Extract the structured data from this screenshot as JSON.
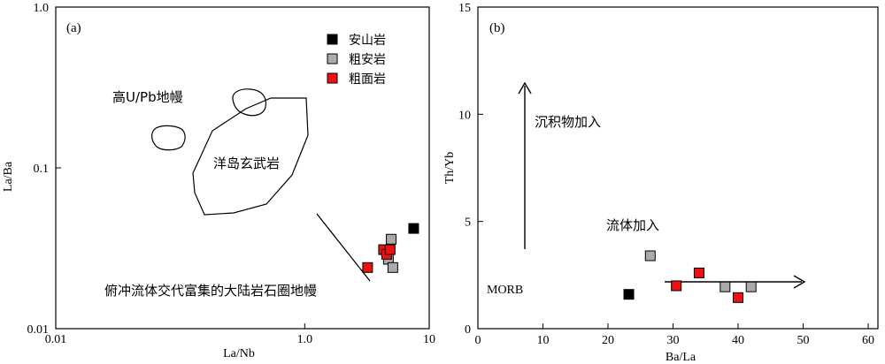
{
  "chart_data": [
    {
      "type": "scatter",
      "panel_label": "(a)",
      "xlabel": "La/Nb",
      "ylabel": "La/Ba",
      "x_scale": "log",
      "y_scale": "log",
      "xlim": [
        0.01,
        10
      ],
      "ylim": [
        0.01,
        1.0
      ],
      "x_ticks": [
        {
          "value": 0.01,
          "label": "0.01"
        },
        {
          "value": 1.0,
          "label": "1.0"
        },
        {
          "value": 10,
          "label": "10"
        }
      ],
      "y_ticks": [
        {
          "value": 0.01,
          "label": "0.01"
        },
        {
          "value": 0.1,
          "label": "0.1"
        },
        {
          "value": 1.0,
          "label": "1.0"
        }
      ],
      "legend": {
        "placement": "top-right",
        "entries": [
          {
            "name": "安山岩",
            "color": "#000000"
          },
          {
            "name": "粗安岩",
            "color": "#aaaaaa"
          },
          {
            "name": "粗面岩",
            "color": "#ee1111"
          }
        ]
      },
      "series": [
        {
          "name": "安山岩",
          "color": "#000000",
          "points": [
            {
              "x": 7.5,
              "y": 0.042
            }
          ]
        },
        {
          "name": "粗安岩",
          "color": "#aaaaaa",
          "points": [
            {
              "x": 4.95,
              "y": 0.036
            },
            {
              "x": 4.7,
              "y": 0.027
            },
            {
              "x": 5.1,
              "y": 0.024
            }
          ]
        },
        {
          "name": "粗面岩",
          "color": "#ee1111",
          "points": [
            {
              "x": 3.2,
              "y": 0.024
            },
            {
              "x": 4.3,
              "y": 0.031
            },
            {
              "x": 4.55,
              "y": 0.029
            },
            {
              "x": 4.85,
              "y": 0.031
            }
          ]
        }
      ],
      "regions": [
        {
          "label": "高U/Pb地幔",
          "kind": "small-loops"
        },
        {
          "label": "洋岛玄武岩",
          "kind": "field"
        },
        {
          "label": "俯冲流体交代富集的大陆岩石圈地幔",
          "kind": "trend-line"
        }
      ]
    },
    {
      "type": "scatter",
      "panel_label": "(b)",
      "xlabel": "Ba/La",
      "ylabel": "Th/Yb",
      "xlim": [
        0,
        60
      ],
      "ylim": [
        0,
        15
      ],
      "x_ticks": [
        0,
        10,
        20,
        30,
        40,
        50,
        60
      ],
      "y_ticks": [
        0,
        5,
        10,
        15
      ],
      "series": [
        {
          "name": "安山岩",
          "color": "#000000",
          "points": [
            {
              "x": 23.2,
              "y": 1.6
            }
          ]
        },
        {
          "name": "粗安岩",
          "color": "#aaaaaa",
          "points": [
            {
              "x": 26.5,
              "y": 3.4
            },
            {
              "x": 38.0,
              "y": 1.95
            },
            {
              "x": 42.0,
              "y": 1.95
            }
          ]
        },
        {
          "name": "粗面岩",
          "color": "#ee1111",
          "points": [
            {
              "x": 30.5,
              "y": 2.0
            },
            {
              "x": 34.0,
              "y": 2.6
            },
            {
              "x": 40.0,
              "y": 1.45
            }
          ]
        }
      ],
      "annotations": [
        {
          "text": "沉积物加入",
          "arrow": "vertical"
        },
        {
          "text": "流体加入",
          "arrow": "horizontal"
        },
        {
          "text": "MORB"
        }
      ]
    }
  ]
}
